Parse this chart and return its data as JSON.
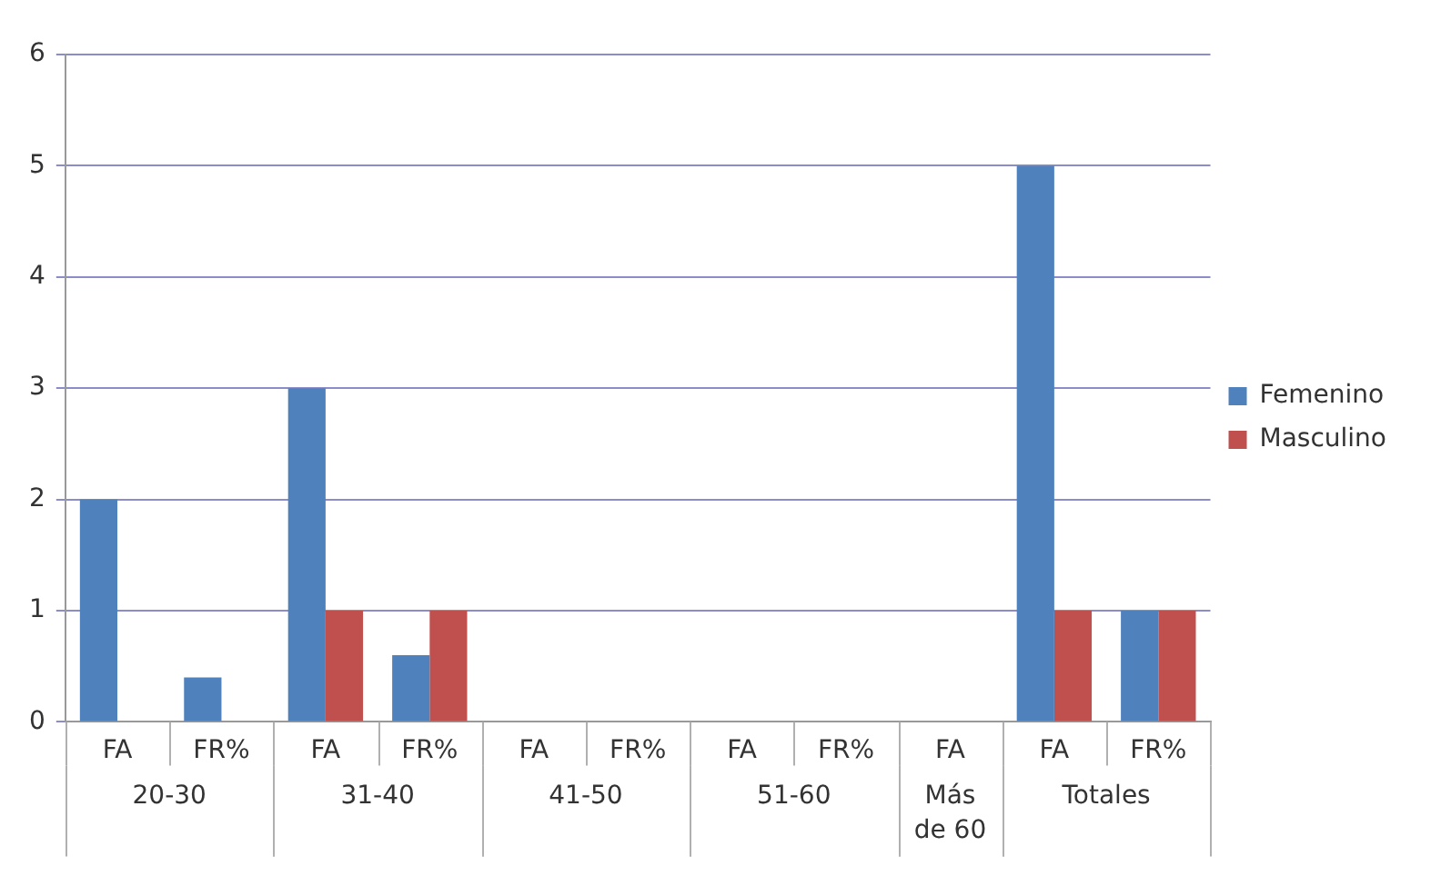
{
  "chart_data": {
    "type": "bar",
    "categories": [
      "FA",
      "FR%",
      "FA",
      "FR%",
      "FA",
      "FR%",
      "FA",
      "FR%",
      "FA",
      "FA",
      "FR%"
    ],
    "series": [
      {
        "name": "Femenino",
        "color": "#4f81bd",
        "values": [
          2,
          0.4,
          3,
          0.6,
          0,
          0,
          0,
          0,
          0,
          5,
          1
        ]
      },
      {
        "name": "Masculino",
        "color": "#c0504d",
        "values": [
          0,
          0,
          1,
          1,
          0,
          0,
          0,
          0,
          0,
          1,
          1
        ]
      }
    ],
    "annotations": [
      "20-30",
      "31-40",
      "41-50",
      "51-60",
      "Más de 60",
      "Totales"
    ],
    "ylim": [
      0,
      6
    ],
    "yticks": [
      0,
      1,
      2,
      3,
      4,
      5,
      6
    ],
    "grid": "y",
    "legend": "right"
  }
}
